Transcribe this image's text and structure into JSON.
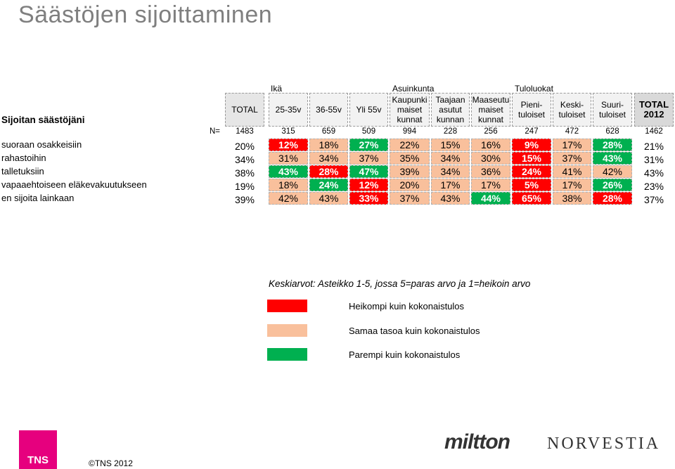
{
  "title": "Säästöjen sijoittaminen",
  "side_title": "Sijoitan säästöjäni",
  "groups": {
    "ika": "Ikä",
    "asuinkunta": "Asuinkunta",
    "tuloluokat": "Tuloluokat"
  },
  "columns": [
    "TOTAL",
    "25-35v",
    "36-55v",
    "Yli 55v",
    "Kaupunki maiset kunnat",
    "Taajaan asutut kunnan",
    "Maaseutu maiset kunnat",
    "Pieni- tuloiset",
    "Keski- tuloiset",
    "Suuri- tuloiset",
    "TOTAL 2012"
  ],
  "n_label": "N=",
  "n_values": [
    "1483",
    "315",
    "659",
    "509",
    "994",
    "228",
    "256",
    "247",
    "472",
    "628",
    "1462"
  ],
  "rows": [
    {
      "label": "suoraan osakkeisiin",
      "values": [
        "20%",
        "12%",
        "18%",
        "27%",
        "22%",
        "15%",
        "16%",
        "9%",
        "17%",
        "28%",
        "21%"
      ],
      "status": [
        "plain",
        "red",
        "same",
        "green",
        "same",
        "same",
        "same",
        "red",
        "same",
        "green",
        "plain"
      ]
    },
    {
      "label": "rahastoihin",
      "values": [
        "34%",
        "31%",
        "34%",
        "37%",
        "35%",
        "34%",
        "30%",
        "15%",
        "37%",
        "43%",
        "31%"
      ],
      "status": [
        "plain",
        "same",
        "same",
        "same",
        "same",
        "same",
        "same",
        "red",
        "same",
        "green",
        "plain"
      ]
    },
    {
      "label": "talletuksiin",
      "values": [
        "38%",
        "43%",
        "28%",
        "47%",
        "39%",
        "34%",
        "36%",
        "24%",
        "41%",
        "42%",
        "43%"
      ],
      "status": [
        "plain",
        "green",
        "red",
        "green",
        "same",
        "same",
        "same",
        "red",
        "same",
        "same",
        "plain"
      ]
    },
    {
      "label": "vapaaehtoiseen eläkevakuutukseen",
      "values": [
        "19%",
        "18%",
        "24%",
        "12%",
        "20%",
        "17%",
        "17%",
        "5%",
        "17%",
        "26%",
        "23%"
      ],
      "status": [
        "plain",
        "same",
        "green",
        "red",
        "same",
        "same",
        "same",
        "red",
        "same",
        "green",
        "plain"
      ]
    },
    {
      "label": "en sijoita lainkaan",
      "values": [
        "39%",
        "42%",
        "43%",
        "33%",
        "37%",
        "43%",
        "44%",
        "65%",
        "38%",
        "28%",
        "37%"
      ],
      "status": [
        "plain",
        "same",
        "same",
        "red",
        "same",
        "same",
        "green",
        "red",
        "same",
        "red",
        "plain"
      ]
    }
  ],
  "legend": {
    "title": "Keskiarvot: Asteikko 1-5, jossa 5=paras arvo ja 1=heikoin arvo",
    "items": [
      {
        "label": "Heikompi kuin kokonaistulos",
        "color": "#ff0000"
      },
      {
        "label": "Samaa tasoa kuin kokonaistulos",
        "color": "#f9c09c"
      },
      {
        "label": "Parempi kuin kokonaistulos",
        "color": "#00b050"
      }
    ]
  },
  "footer": {
    "logo": "TNS",
    "copyright": "©TNS 2012",
    "brand1": "miltton",
    "brand2": "NORVESTIA"
  }
}
